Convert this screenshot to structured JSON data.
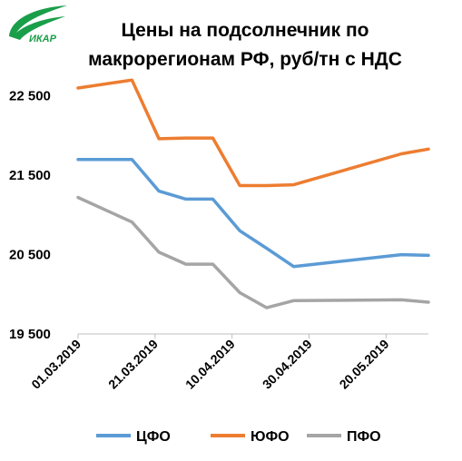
{
  "logo": {
    "text": "ИКАР",
    "color": "#1a9e4a"
  },
  "chart_data": {
    "type": "line",
    "title_lines": [
      "Цены на подсолнечник по",
      "макрорегионам РФ, руб/тн с НДС"
    ],
    "x": [
      "01.03.2019",
      "08.03.2019",
      "15.03.2019",
      "22.03.2019",
      "29.03.2019",
      "05.04.2019",
      "12.04.2019",
      "19.04.2019",
      "26.04.2019",
      "03.05.2019",
      "10.05.2019",
      "17.05.2019",
      "24.05.2019",
      "31.05.2019"
    ],
    "xticks": [
      "01.03.2019",
      "21.03.2019",
      "10.04.2019",
      "30.04.2019",
      "20.05.2019"
    ],
    "ylim": [
      19500,
      23000
    ],
    "yticks": [
      19500,
      20500,
      21500,
      22500
    ],
    "ytick_labels": [
      "19 500",
      "20 500",
      "21 500",
      "22 500"
    ],
    "grid": false,
    "legend_position": "bottom",
    "series": [
      {
        "name": "ЦФО",
        "color": "#5b9bd5",
        "values": [
          [
            "01.03.2019",
            21700
          ],
          [
            "15.03.2019",
            21700
          ],
          [
            "22.03.2019",
            21300
          ],
          [
            "29.03.2019",
            21200
          ],
          [
            "05.04.2019",
            21200
          ],
          [
            "12.04.2019",
            20800
          ],
          [
            "19.04.2019",
            20580
          ],
          [
            "26.04.2019",
            20350
          ],
          [
            "24.05.2019",
            20500
          ],
          [
            "31.05.2019",
            20490
          ]
        ]
      },
      {
        "name": "ЮФО",
        "color": "#ed7d31",
        "values": [
          [
            "01.03.2019",
            22600
          ],
          [
            "15.03.2019",
            22700
          ],
          [
            "22.03.2019",
            21960
          ],
          [
            "29.03.2019",
            21970
          ],
          [
            "05.04.2019",
            21970
          ],
          [
            "12.04.2019",
            21370
          ],
          [
            "19.04.2019",
            21370
          ],
          [
            "26.04.2019",
            21380
          ],
          [
            "24.05.2019",
            21770
          ],
          [
            "31.05.2019",
            21830
          ]
        ]
      },
      {
        "name": "ПФО",
        "color": "#a5a5a5",
        "values": [
          [
            "01.03.2019",
            21220
          ],
          [
            "15.03.2019",
            20910
          ],
          [
            "22.03.2019",
            20530
          ],
          [
            "29.03.2019",
            20380
          ],
          [
            "05.04.2019",
            20380
          ],
          [
            "12.04.2019",
            20020
          ],
          [
            "19.04.2019",
            19830
          ],
          [
            "26.04.2019",
            19920
          ],
          [
            "24.05.2019",
            19930
          ],
          [
            "31.05.2019",
            19900
          ]
        ]
      }
    ]
  }
}
